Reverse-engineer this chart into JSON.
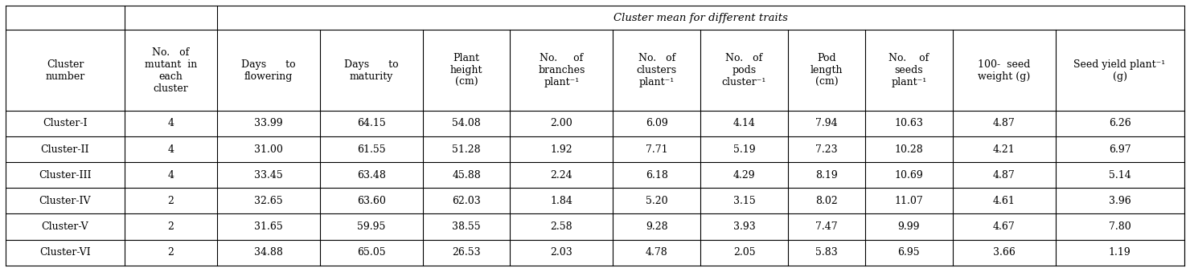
{
  "title": "Cluster mean for different traits",
  "header_row1": [
    "Cluster\nnumber",
    "No.   of\nmutant  in\neach\ncluster",
    "Days      to\nflowering",
    "Days      to\nmaturity",
    "Plant\nheight\n(cm)",
    "No.     of\nbranches\nplant⁻¹",
    "No.   of\nclusters\nplant⁻¹",
    "No.   of\npods\ncluster⁻¹",
    "Pod\nlength\n(cm)",
    "No.    of\nseeds\nplant⁻¹",
    "100-  seed\nweight (g)",
    "Seed yield plant⁻¹\n(g)"
  ],
  "data_rows": [
    [
      "Cluster-I",
      "4",
      "33.99",
      "64.15",
      "54.08",
      "2.00",
      "6.09",
      "4.14",
      "7.94",
      "10.63",
      "4.87",
      "6.26"
    ],
    [
      "Cluster-II",
      "4",
      "31.00",
      "61.55",
      "51.28",
      "1.92",
      "7.71",
      "5.19",
      "7.23",
      "10.28",
      "4.21",
      "6.97"
    ],
    [
      "Cluster-III",
      "4",
      "33.45",
      "63.48",
      "45.88",
      "2.24",
      "6.18",
      "4.29",
      "8.19",
      "10.69",
      "4.87",
      "5.14"
    ],
    [
      "Cluster-IV",
      "2",
      "32.65",
      "63.60",
      "62.03",
      "1.84",
      "5.20",
      "3.15",
      "8.02",
      "11.07",
      "4.61",
      "3.96"
    ],
    [
      "Cluster-V",
      "2",
      "31.65",
      "59.95",
      "38.55",
      "2.58",
      "9.28",
      "3.93",
      "7.47",
      "9.99",
      "4.67",
      "7.80"
    ],
    [
      "Cluster-VI",
      "2",
      "34.88",
      "65.05",
      "26.53",
      "2.03",
      "4.78",
      "2.05",
      "5.83",
      "6.95",
      "3.66",
      "1.19"
    ]
  ],
  "col_widths_rel": [
    1.15,
    0.9,
    1.0,
    1.0,
    0.85,
    1.0,
    0.85,
    0.85,
    0.75,
    0.85,
    1.0,
    1.25
  ],
  "bg_color": "#ffffff",
  "text_color": "#000000",
  "line_color": "#000000",
  "font_size": 9.0,
  "header_font_size": 9.0,
  "title_font_size": 9.5
}
